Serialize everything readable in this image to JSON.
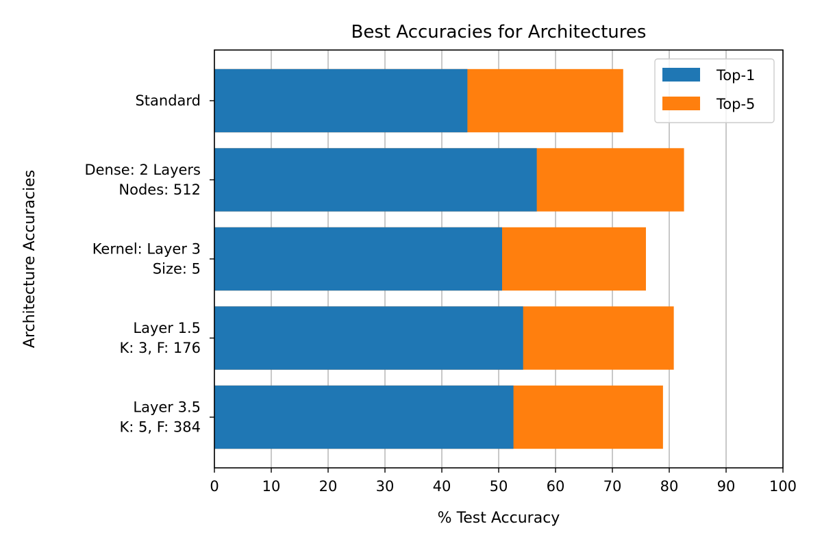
{
  "chart_data": {
    "type": "bar",
    "orientation": "horizontal",
    "stacked": false,
    "title": "Best Accuracies for Architectures",
    "xlabel": "% Test Accuracy",
    "ylabel": "Architecture Accuracies",
    "xlim": [
      0,
      100
    ],
    "xticks": [
      0,
      10,
      20,
      30,
      40,
      50,
      60,
      70,
      80,
      90,
      100
    ],
    "grid": "vertical",
    "legend_position": "top-right",
    "categories": [
      [
        "Standard"
      ],
      [
        "Dense: 2 Layers",
        "Nodes: 512"
      ],
      [
        "Kernel: Layer 3",
        "Size: 5"
      ],
      [
        "Layer 1.5",
        "K: 3, F: 176"
      ],
      [
        "Layer 3.5",
        "K: 5, F: 384"
      ]
    ],
    "series": [
      {
        "name": "Top-5",
        "color": "#ff7f0e",
        "values": [
          71.9,
          82.6,
          75.9,
          80.8,
          78.9
        ]
      },
      {
        "name": "Top-1",
        "color": "#1f77b4",
        "values": [
          44.5,
          56.7,
          50.6,
          54.3,
          52.6
        ]
      }
    ],
    "legend_order": [
      "Top-1",
      "Top-5"
    ]
  }
}
